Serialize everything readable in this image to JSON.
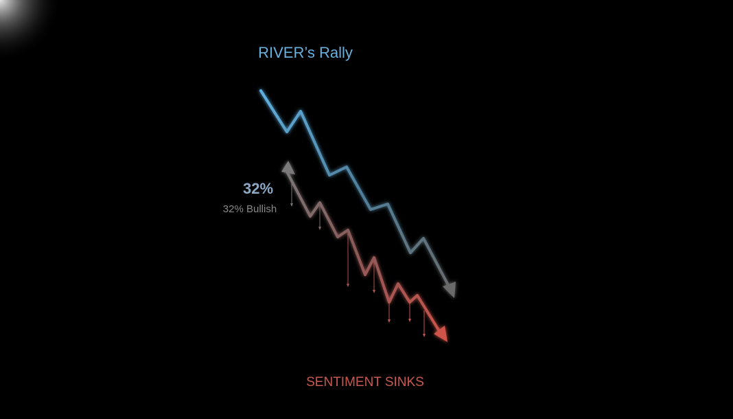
{
  "title": "RIVER’s Rally",
  "sentiment": {
    "value_label": "32%",
    "caption": "32% Bullish"
  },
  "footer": "SENTIMENT SINKS"
}
